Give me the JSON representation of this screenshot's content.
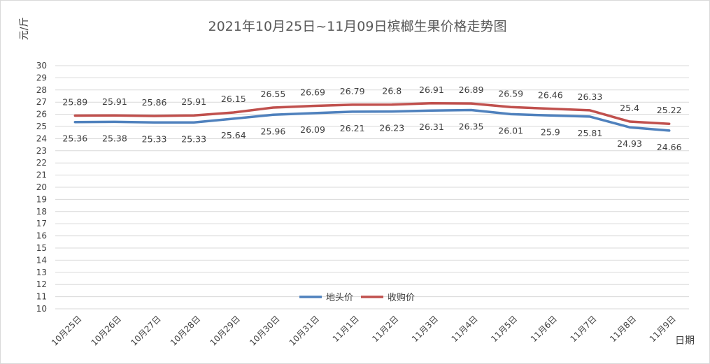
{
  "chart_data": {
    "type": "line",
    "title": "2021年10月25日~11月09日槟榔生果价格走势图",
    "ylabel": "元/斤",
    "xlabel": "日期",
    "ylim": [
      10,
      30
    ],
    "yticks": [
      10,
      11,
      12,
      13,
      14,
      15,
      16,
      17,
      18,
      19,
      20,
      21,
      22,
      23,
      24,
      25,
      26,
      27,
      28,
      29,
      30
    ],
    "grid": true,
    "legend": "bottom-center",
    "categories": [
      "10月25日",
      "10月26日",
      "10月27日",
      "10月28日",
      "10月29日",
      "10月30日",
      "10月31日",
      "11月1日",
      "11月2日",
      "11月3日",
      "11月4日",
      "11月5日",
      "11月6日",
      "11月7日",
      "11月8日",
      "11月9日"
    ],
    "series": [
      {
        "name": "地头价",
        "color": "#4f81bd",
        "label_position": "below",
        "values": [
          25.36,
          25.38,
          25.33,
          25.33,
          25.64,
          25.96,
          26.09,
          26.21,
          26.23,
          26.31,
          26.35,
          26.01,
          25.9,
          25.81,
          24.93,
          24.66
        ]
      },
      {
        "name": "收购价",
        "color": "#c0504d",
        "label_position": "above",
        "values": [
          25.89,
          25.91,
          25.86,
          25.91,
          26.15,
          26.55,
          26.69,
          26.79,
          26.8,
          26.91,
          26.89,
          26.59,
          26.46,
          26.33,
          25.4,
          25.22
        ]
      }
    ]
  }
}
